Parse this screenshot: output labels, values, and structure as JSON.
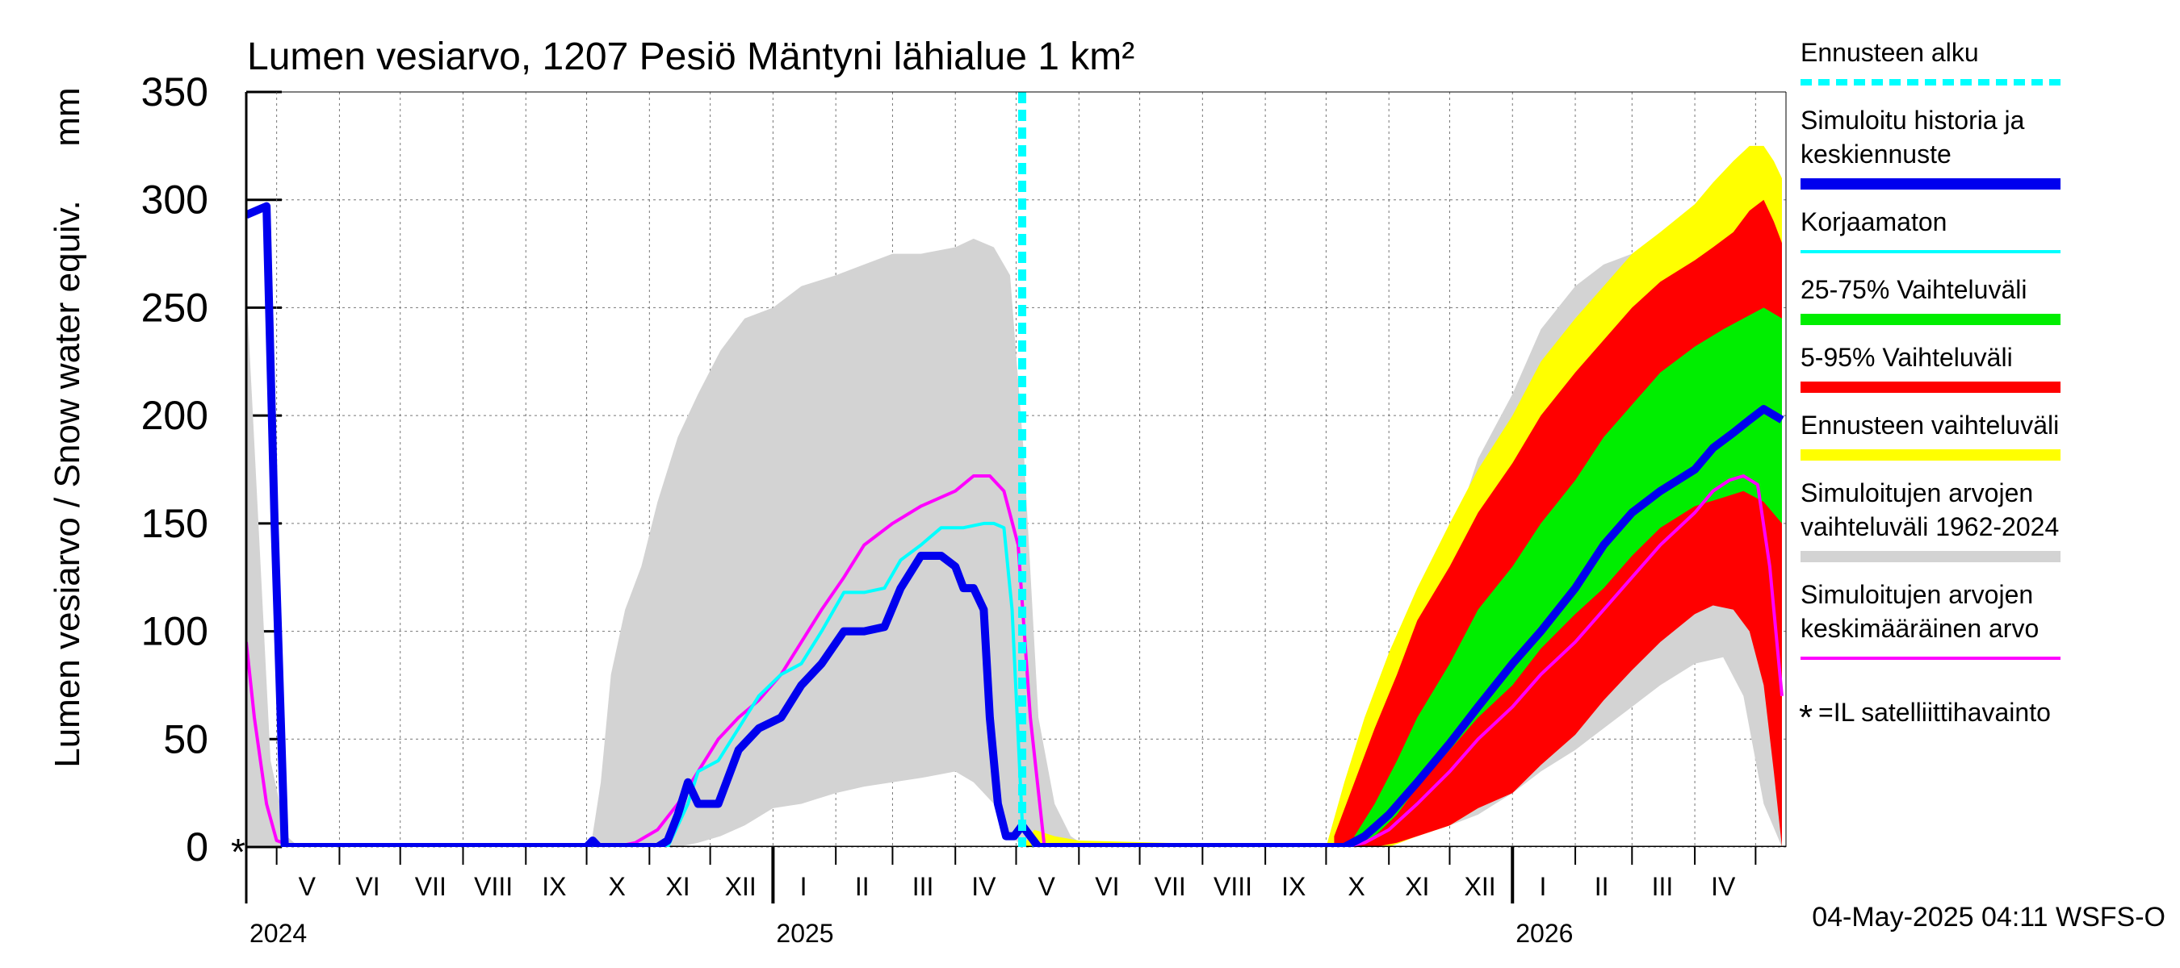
{
  "chart_data": {
    "type": "area",
    "title": "Lumen vesiarvo, 1207 Pesiö Mäntyni lähialue 1 km²",
    "ylabel": "Lumen vesiarvo / Snow water equiv.",
    "yunit": "mm",
    "ylim": [
      0,
      350
    ],
    "yticks": [
      0,
      50,
      100,
      150,
      200,
      250,
      300,
      350
    ],
    "xlim": [
      "2024-04-16",
      "2026-05-16"
    ],
    "grid": true,
    "month_labels": [
      {
        "label": "V",
        "mid": "2024-05-16"
      },
      {
        "label": "VI",
        "mid": "2024-06-15"
      },
      {
        "label": "VII",
        "mid": "2024-07-16"
      },
      {
        "label": "VIII",
        "mid": "2024-08-16"
      },
      {
        "label": "IX",
        "mid": "2024-09-15"
      },
      {
        "label": "X",
        "mid": "2024-10-16"
      },
      {
        "label": "XI",
        "mid": "2024-11-15"
      },
      {
        "label": "XII",
        "mid": "2024-12-16"
      },
      {
        "label": "I",
        "mid": "2025-01-16"
      },
      {
        "label": "II",
        "mid": "2025-02-14"
      },
      {
        "label": "III",
        "mid": "2025-03-16"
      },
      {
        "label": "IV",
        "mid": "2025-04-15"
      },
      {
        "label": "V",
        "mid": "2025-05-16"
      },
      {
        "label": "VI",
        "mid": "2025-06-15"
      },
      {
        "label": "VII",
        "mid": "2025-07-16"
      },
      {
        "label": "VIII",
        "mid": "2025-08-16"
      },
      {
        "label": "IX",
        "mid": "2025-09-15"
      },
      {
        "label": "X",
        "mid": "2025-10-16"
      },
      {
        "label": "XI",
        "mid": "2025-11-15"
      },
      {
        "label": "XII",
        "mid": "2025-12-16"
      },
      {
        "label": "I",
        "mid": "2026-01-16"
      },
      {
        "label": "II",
        "mid": "2026-02-14"
      },
      {
        "label": "III",
        "mid": "2026-03-16"
      },
      {
        "label": "IV",
        "mid": "2026-04-15"
      }
    ],
    "month_boundaries": [
      "2024-05-01",
      "2024-06-01",
      "2024-07-01",
      "2024-08-01",
      "2024-09-01",
      "2024-10-01",
      "2024-11-01",
      "2024-12-01",
      "2025-01-01",
      "2025-02-01",
      "2025-03-01",
      "2025-04-01",
      "2025-05-01",
      "2025-06-01",
      "2025-07-01",
      "2025-08-01",
      "2025-09-01",
      "2025-10-01",
      "2025-11-01",
      "2025-12-01",
      "2026-01-01",
      "2026-02-01",
      "2026-03-01",
      "2026-04-01",
      "2026-05-01"
    ],
    "year_labels": [
      {
        "label": "2024",
        "date": "2024-04-16"
      },
      {
        "label": "2025",
        "date": "2025-01-01"
      },
      {
        "label": "2026",
        "date": "2026-01-01"
      }
    ],
    "forecast_start": "2025-05-04",
    "series": [
      {
        "name": "Simuloitujen arvojen vaihteluväli 1962-2024",
        "kind": "band",
        "color": "#d3d3d3",
        "x": [
          "2024-04-16",
          "2024-04-22",
          "2024-04-28",
          "2024-05-06",
          "2024-05-12",
          "2024-10-03",
          "2024-10-08",
          "2024-10-13",
          "2024-10-20",
          "2024-10-28",
          "2024-11-05",
          "2024-11-15",
          "2024-11-25",
          "2024-12-06",
          "2024-12-18",
          "2025-01-01",
          "2025-01-15",
          "2025-02-01",
          "2025-02-15",
          "2025-03-01",
          "2025-03-15",
          "2025-04-01",
          "2025-04-10",
          "2025-04-20",
          "2025-04-28",
          "2025-05-05",
          "2025-05-12",
          "2025-05-20",
          "2025-05-28",
          "2025-06-05",
          "2025-10-05",
          "2025-10-12",
          "2025-10-20",
          "2025-11-01",
          "2025-11-15",
          "2025-12-01",
          "2025-12-15",
          "2026-01-01",
          "2026-01-15",
          "2026-02-01",
          "2026-02-15",
          "2026-03-01",
          "2026-03-15",
          "2026-04-01",
          "2026-04-15",
          "2026-04-25",
          "2026-05-05",
          "2026-05-14"
        ],
        "low": [
          0,
          0,
          0,
          0,
          0,
          0,
          0,
          0,
          0,
          0,
          0,
          0,
          2,
          5,
          10,
          18,
          20,
          25,
          28,
          30,
          32,
          35,
          30,
          20,
          5,
          0,
          0,
          0,
          0,
          0,
          0,
          0,
          0,
          2,
          5,
          10,
          15,
          25,
          35,
          45,
          55,
          65,
          75,
          85,
          88,
          70,
          20,
          0
        ],
        "high": [
          260,
          150,
          40,
          5,
          0,
          0,
          30,
          80,
          110,
          130,
          160,
          190,
          210,
          230,
          245,
          250,
          260,
          265,
          270,
          275,
          275,
          278,
          282,
          278,
          265,
          180,
          60,
          20,
          5,
          0,
          0,
          20,
          45,
          70,
          95,
          140,
          180,
          210,
          240,
          260,
          270,
          275,
          275,
          270,
          262,
          230,
          120,
          40
        ]
      },
      {
        "name": "Ennusteen vaihteluväli",
        "kind": "band",
        "color": "#ffff00",
        "x": [
          "2025-05-04",
          "2025-05-10",
          "2025-05-20",
          "2025-06-01",
          "2025-10-01",
          "2025-10-10",
          "2025-10-20",
          "2025-11-01",
          "2025-11-15",
          "2025-12-01",
          "2025-12-15",
          "2026-01-01",
          "2026-01-15",
          "2026-02-01",
          "2026-02-15",
          "2026-03-01",
          "2026-03-15",
          "2026-04-01",
          "2026-04-10",
          "2026-04-20",
          "2026-04-28",
          "2026-05-05",
          "2026-05-10",
          "2026-05-14"
        ],
        "low": [
          0,
          0,
          0,
          0,
          0,
          0,
          0,
          0,
          5,
          10,
          18,
          28,
          40,
          55,
          70,
          85,
          100,
          115,
          120,
          118,
          110,
          90,
          50,
          0
        ],
        "high": [
          0,
          8,
          5,
          3,
          0,
          30,
          60,
          90,
          120,
          150,
          175,
          200,
          225,
          245,
          260,
          275,
          285,
          298,
          308,
          318,
          325,
          325,
          318,
          310
        ]
      },
      {
        "name": "5-95% Vaihteluväli",
        "kind": "band",
        "color": "#ff0000",
        "x": [
          "2025-10-05",
          "2025-10-15",
          "2025-10-25",
          "2025-11-05",
          "2025-11-15",
          "2025-12-01",
          "2025-12-15",
          "2026-01-01",
          "2026-01-15",
          "2026-02-01",
          "2026-02-15",
          "2026-03-01",
          "2026-03-15",
          "2026-04-01",
          "2026-04-10",
          "2026-04-20",
          "2026-04-28",
          "2026-05-05",
          "2026-05-10",
          "2026-05-14"
        ],
        "low": [
          0,
          0,
          0,
          2,
          5,
          10,
          18,
          25,
          38,
          52,
          68,
          82,
          95,
          108,
          112,
          110,
          100,
          75,
          35,
          0
        ],
        "high": [
          5,
          30,
          55,
          80,
          105,
          130,
          155,
          178,
          200,
          220,
          235,
          250,
          262,
          272,
          278,
          285,
          295,
          300,
          290,
          280
        ]
      },
      {
        "name": "25-75% Vaihteluväli",
        "kind": "band",
        "color": "#00ee00",
        "x": [
          "2025-10-15",
          "2025-10-25",
          "2025-11-05",
          "2025-11-15",
          "2025-12-01",
          "2025-12-15",
          "2026-01-01",
          "2026-01-15",
          "2026-02-01",
          "2026-02-15",
          "2026-03-01",
          "2026-03-15",
          "2026-04-01",
          "2026-04-15",
          "2026-04-25",
          "2026-05-05",
          "2026-05-14"
        ],
        "low": [
          0,
          5,
          15,
          28,
          45,
          60,
          75,
          92,
          108,
          120,
          135,
          148,
          158,
          162,
          165,
          160,
          150
        ],
        "high": [
          5,
          20,
          40,
          60,
          85,
          110,
          130,
          150,
          170,
          190,
          205,
          220,
          232,
          240,
          245,
          250,
          245
        ]
      },
      {
        "name": "Simuloitujen arvojen keskimääräinen arvo",
        "kind": "line",
        "color": "#ff00ff",
        "x": [
          "2024-04-16",
          "2024-04-20",
          "2024-04-26",
          "2024-05-01",
          "2024-05-10",
          "2024-10-15",
          "2024-10-25",
          "2024-11-05",
          "2024-11-15",
          "2024-11-25",
          "2024-12-05",
          "2024-12-15",
          "2024-12-25",
          "2025-01-05",
          "2025-01-15",
          "2025-01-25",
          "2025-02-05",
          "2025-02-15",
          "2025-03-01",
          "2025-03-15",
          "2025-04-01",
          "2025-04-10",
          "2025-04-18",
          "2025-04-25",
          "2025-05-02",
          "2025-05-08",
          "2025-05-15",
          "2025-10-10",
          "2025-10-20",
          "2025-11-01",
          "2025-11-15",
          "2025-12-01",
          "2025-12-15",
          "2026-01-01",
          "2026-01-15",
          "2026-02-01",
          "2026-02-15",
          "2026-03-01",
          "2026-03-15",
          "2026-04-01",
          "2026-04-10",
          "2026-04-18",
          "2026-04-25",
          "2026-05-02",
          "2026-05-08",
          "2026-05-14"
        ],
        "y": [
          95,
          60,
          20,
          3,
          0,
          0,
          2,
          8,
          20,
          35,
          50,
          60,
          68,
          80,
          95,
          110,
          125,
          140,
          150,
          158,
          165,
          172,
          172,
          165,
          140,
          60,
          0,
          0,
          2,
          8,
          20,
          35,
          50,
          65,
          80,
          95,
          110,
          125,
          140,
          155,
          165,
          170,
          172,
          168,
          130,
          70
        ]
      },
      {
        "name": "Korjaamaton",
        "kind": "line",
        "color": "#00ffff",
        "x": [
          "2024-04-16",
          "2024-04-26",
          "2024-04-30",
          "2024-05-05",
          "2024-05-12",
          "2024-11-10",
          "2024-11-15",
          "2024-11-20",
          "2024-11-25",
          "2024-12-05",
          "2024-12-15",
          "2024-12-25",
          "2025-01-05",
          "2025-01-15",
          "2025-01-25",
          "2025-02-05",
          "2025-02-15",
          "2025-02-25",
          "2025-03-05",
          "2025-03-15",
          "2025-03-25",
          "2025-04-05",
          "2025-04-15",
          "2025-04-20",
          "2025-04-25",
          "2025-04-29",
          "2025-05-04",
          "2025-05-10",
          "2025-10-10"
        ],
        "y": [
          293,
          297,
          160,
          0,
          0,
          0,
          10,
          20,
          35,
          40,
          55,
          70,
          80,
          85,
          100,
          118,
          118,
          120,
          133,
          140,
          148,
          148,
          150,
          150,
          148,
          110,
          12,
          0,
          0
        ]
      },
      {
        "name": "Simuloitu historia ja keskiennuste",
        "kind": "line",
        "color": "#0000ee",
        "x": [
          "2024-04-16",
          "2024-04-26",
          "2024-04-30",
          "2024-05-05",
          "2024-05-12",
          "2024-10-01",
          "2024-10-04",
          "2024-10-07",
          "2024-11-05",
          "2024-11-10",
          "2024-11-15",
          "2024-11-20",
          "2024-11-25",
          "2024-12-05",
          "2024-12-15",
          "2024-12-25",
          "2025-01-05",
          "2025-01-15",
          "2025-01-25",
          "2025-02-05",
          "2025-02-15",
          "2025-02-25",
          "2025-03-05",
          "2025-03-15",
          "2025-03-25",
          "2025-04-01",
          "2025-04-05",
          "2025-04-10",
          "2025-04-15",
          "2025-04-18",
          "2025-04-22",
          "2025-04-26",
          "2025-04-30",
          "2025-05-04",
          "2025-05-08",
          "2025-05-12",
          "2025-05-20",
          "2025-10-01",
          "2025-10-10",
          "2025-10-20",
          "2025-11-01",
          "2025-11-15",
          "2025-12-01",
          "2025-12-15",
          "2026-01-01",
          "2026-01-15",
          "2026-02-01",
          "2026-02-15",
          "2026-03-01",
          "2026-03-15",
          "2026-04-01",
          "2026-04-10",
          "2026-04-20",
          "2026-04-28",
          "2026-05-05",
          "2026-05-14"
        ],
        "y": [
          293,
          297,
          150,
          0,
          0,
          0,
          3,
          0,
          0,
          3,
          15,
          30,
          20,
          20,
          45,
          55,
          60,
          75,
          85,
          100,
          100,
          102,
          120,
          135,
          135,
          130,
          120,
          120,
          110,
          60,
          20,
          5,
          5,
          10,
          5,
          0,
          0,
          0,
          0,
          5,
          15,
          30,
          48,
          65,
          85,
          100,
          120,
          140,
          155,
          165,
          175,
          185,
          192,
          198,
          203,
          198
        ]
      }
    ],
    "satellite_observations": [
      {
        "date": "2024-04-16",
        "value": 0
      }
    ],
    "legend": {
      "placement": "right",
      "items": [
        {
          "label": "Ennusteen alku",
          "color": "#00ffff",
          "style": "dashed"
        },
        {
          "label": "Simuloitu historia ja keskiennuste",
          "color": "#0000ee",
          "style": "thick"
        },
        {
          "label": "Korjaamaton",
          "color": "#00ffff",
          "style": "line"
        },
        {
          "label": "25-75% Vaihteluväli",
          "color": "#00ee00",
          "style": "thick"
        },
        {
          "label": "5-95% Vaihteluväli",
          "color": "#ff0000",
          "style": "thick"
        },
        {
          "label": "Ennusteen vaihteluväli",
          "color": "#ffff00",
          "style": "thick"
        },
        {
          "label": "Simuloitujen arvojen vaihteluväli 1962-2024",
          "color": "#d3d3d3",
          "style": "thick"
        },
        {
          "label": "Simuloitujen arvojen keskimääräinen arvo",
          "color": "#ff00ff",
          "style": "line"
        },
        {
          "label": "=IL satelliittihavainto",
          "color": "#000000",
          "style": "asterisk"
        }
      ]
    },
    "footer": "04-May-2025 04:11 WSFS-O"
  }
}
